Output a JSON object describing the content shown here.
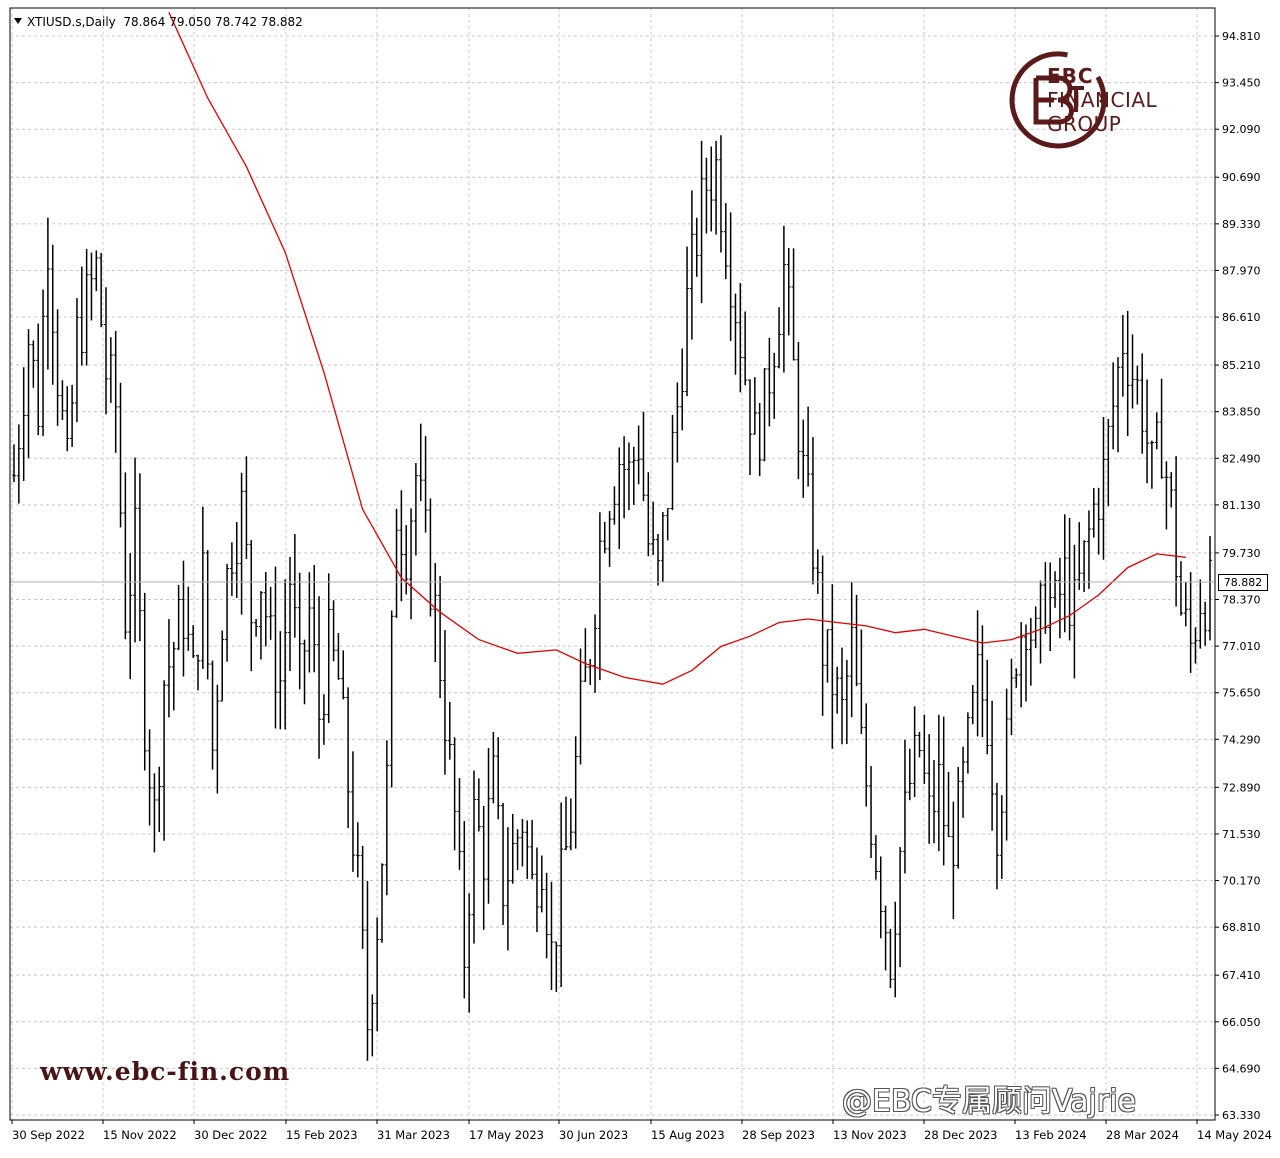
{
  "header": {
    "symbol_timeframe": "XTIUSD.s,Daily",
    "ohlc": "78.864 79.050 78.742 78.882"
  },
  "current_price_label": "78.882",
  "brand": {
    "name_line1": "EBC",
    "name_line2": "FINANCIAL",
    "name_line3": "GROUP",
    "website": "www.ebc-fin.com",
    "watermark": "@EBC专属顾问Vajrie",
    "color": "#5a1a1a"
  },
  "chart_data": {
    "type": "line",
    "title": "",
    "ylim": [
      63.33,
      95.5
    ],
    "y_ticks": [
      "94.810",
      "93.450",
      "92.090",
      "90.690",
      "89.330",
      "87.970",
      "86.610",
      "85.210",
      "83.850",
      "82.490",
      "81.130",
      "79.730",
      "78.370",
      "77.010",
      "75.650",
      "74.290",
      "72.890",
      "71.530",
      "70.170",
      "68.810",
      "67.410",
      "66.050",
      "64.690",
      "63.330"
    ],
    "x_ticks": [
      "30 Sep 2022",
      "15 Nov 2022",
      "30 Dec 2022",
      "15 Feb 2023",
      "31 Mar 2023",
      "17 May 2023",
      "30 Jun 2023",
      "15 Aug 2023",
      "28 Sep 2023",
      "13 Nov 2023",
      "28 Dec 2023",
      "13 Feb 2024",
      "28 Mar 2024",
      "14 May 2024"
    ],
    "grid": true,
    "series": [
      {
        "kind": "price-bars",
        "color": "#000000",
        "close_anchors": [
          [
            0,
            82.0
          ],
          [
            3,
            86.0
          ],
          [
            5,
            84.0
          ],
          [
            7,
            89.0
          ],
          [
            9,
            85.0
          ],
          [
            11,
            82.0
          ],
          [
            13,
            86.0
          ],
          [
            15,
            87.0
          ],
          [
            17,
            88.0
          ],
          [
            19,
            85.0
          ],
          [
            21,
            84.0
          ],
          [
            23,
            78.0
          ],
          [
            25,
            80.0
          ],
          [
            27,
            75.0
          ],
          [
            29,
            72.0
          ],
          [
            31,
            76.0
          ],
          [
            33,
            77.0
          ],
          [
            35,
            78.0
          ],
          [
            37,
            76.0
          ],
          [
            39,
            79.0
          ],
          [
            41,
            74.0
          ],
          [
            43,
            78.0
          ],
          [
            45,
            80.0
          ],
          [
            47,
            81.0
          ],
          [
            49,
            78.0
          ],
          [
            51,
            79.0
          ],
          [
            53,
            77.0
          ],
          [
            55,
            76.0
          ],
          [
            57,
            79.0
          ],
          [
            59,
            76.0
          ],
          [
            61,
            78.0
          ],
          [
            63,
            75.0
          ],
          [
            65,
            77.0
          ],
          [
            67,
            76.0
          ],
          [
            69,
            73.0
          ],
          [
            71,
            70.0
          ],
          [
            73,
            66.0
          ],
          [
            75,
            69.0
          ],
          [
            77,
            73.0
          ],
          [
            79,
            81.0
          ],
          [
            81,
            80.0
          ],
          [
            83,
            82.0
          ],
          [
            85,
            80.0
          ],
          [
            87,
            78.0
          ],
          [
            89,
            75.0
          ],
          [
            91,
            72.0
          ],
          [
            93,
            68.0
          ],
          [
            95,
            72.0
          ],
          [
            97,
            71.0
          ],
          [
            99,
            73.0
          ],
          [
            101,
            70.0
          ],
          [
            103,
            71.0
          ],
          [
            105,
            72.0
          ],
          [
            107,
            70.0
          ],
          [
            109,
            71.0
          ],
          [
            111,
            68.0
          ],
          [
            113,
            70.0
          ],
          [
            115,
            72.0
          ],
          [
            117,
            75.0
          ],
          [
            119,
            77.0
          ],
          [
            121,
            80.0
          ],
          [
            123,
            81.5
          ],
          [
            125,
            82.5
          ],
          [
            127,
            82.0
          ],
          [
            129,
            83.0
          ],
          [
            131,
            80.0
          ],
          [
            133,
            79.0
          ],
          [
            135,
            81.5
          ],
          [
            137,
            84.0
          ],
          [
            139,
            87.0
          ],
          [
            141,
            89.0
          ],
          [
            143,
            90.5
          ],
          [
            145,
            91.0
          ],
          [
            147,
            89.0
          ],
          [
            149,
            87.0
          ],
          [
            151,
            85.0
          ],
          [
            153,
            83.0
          ],
          [
            155,
            84.0
          ],
          [
            157,
            86.0
          ],
          [
            159,
            88.0
          ],
          [
            161,
            85.0
          ],
          [
            163,
            82.0
          ],
          [
            165,
            80.0
          ],
          [
            167,
            77.0
          ],
          [
            169,
            76.0
          ],
          [
            171,
            75.0
          ],
          [
            173,
            77.0
          ],
          [
            175,
            74.0
          ],
          [
            177,
            72.0
          ],
          [
            179,
            70.0
          ],
          [
            181,
            68.0
          ],
          [
            183,
            71.0
          ],
          [
            185,
            73.0
          ],
          [
            187,
            74.0
          ],
          [
            189,
            72.0
          ],
          [
            191,
            73.0
          ],
          [
            193,
            71.0
          ],
          [
            195,
            72.0
          ],
          [
            197,
            74.0
          ],
          [
            199,
            76.0
          ],
          [
            201,
            75.0
          ],
          [
            203,
            72.0
          ],
          [
            205,
            74.0
          ],
          [
            207,
            77.0
          ],
          [
            209,
            78.0
          ],
          [
            211,
            77.0
          ],
          [
            213,
            78.5
          ],
          [
            215,
            78.0
          ],
          [
            217,
            79.0
          ],
          [
            219,
            78.0
          ],
          [
            221,
            79.5
          ],
          [
            223,
            81.0
          ],
          [
            225,
            82.0
          ],
          [
            227,
            84.0
          ],
          [
            229,
            86.0
          ],
          [
            231,
            85.0
          ],
          [
            233,
            84.0
          ],
          [
            235,
            82.0
          ],
          [
            237,
            83.0
          ],
          [
            239,
            81.0
          ],
          [
            241,
            78.0
          ],
          [
            243,
            77.0
          ],
          [
            245,
            78.5
          ]
        ]
      },
      {
        "kind": "moving-average",
        "color": "#e60000",
        "points": [
          [
            32,
            95.5
          ],
          [
            40,
            93.0
          ],
          [
            48,
            91.0
          ],
          [
            56,
            88.5
          ],
          [
            64,
            85.0
          ],
          [
            72,
            81.0
          ],
          [
            80,
            79.0
          ],
          [
            88,
            78.0
          ],
          [
            96,
            77.2
          ],
          [
            104,
            76.8
          ],
          [
            112,
            76.9
          ],
          [
            118,
            76.5
          ],
          [
            126,
            76.1
          ],
          [
            134,
            75.9
          ],
          [
            140,
            76.3
          ],
          [
            146,
            77.0
          ],
          [
            152,
            77.3
          ],
          [
            158,
            77.7
          ],
          [
            164,
            77.8
          ],
          [
            170,
            77.7
          ],
          [
            176,
            77.6
          ],
          [
            182,
            77.4
          ],
          [
            188,
            77.5
          ],
          [
            194,
            77.3
          ],
          [
            200,
            77.1
          ],
          [
            206,
            77.2
          ],
          [
            212,
            77.5
          ],
          [
            218,
            77.9
          ],
          [
            224,
            78.5
          ],
          [
            230,
            79.3
          ],
          [
            236,
            79.7
          ],
          [
            242,
            79.6
          ]
        ]
      }
    ]
  }
}
